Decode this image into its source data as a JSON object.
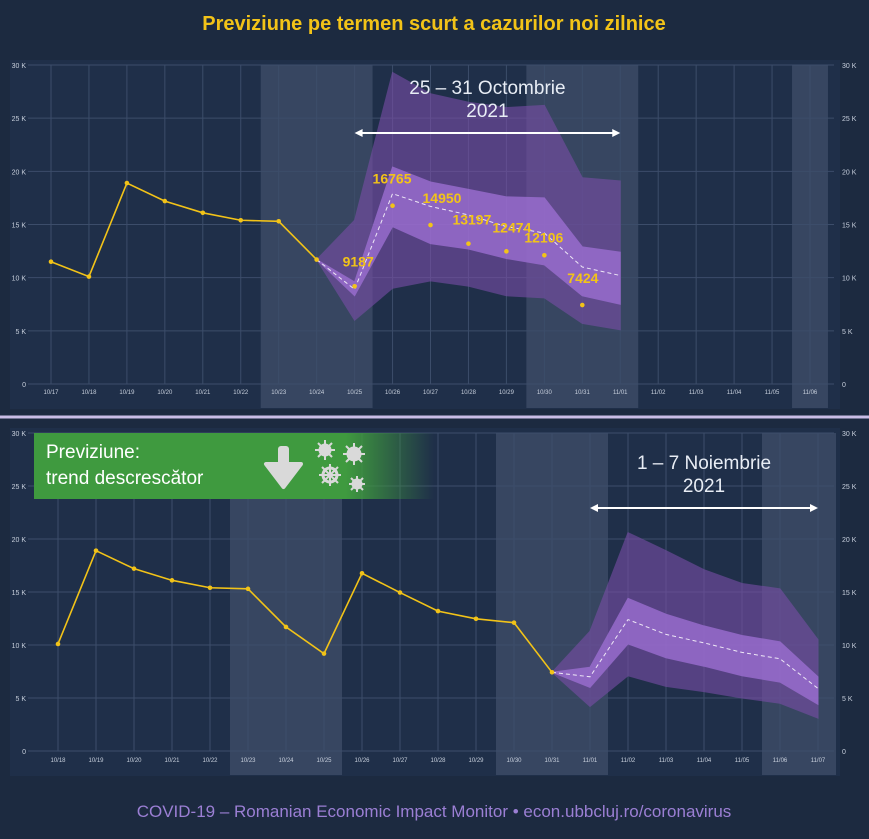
{
  "title": "Previziune pe termen scurt a cazurilor noi zilnice",
  "footer": "COVID-19 – Romanian Economic Impact Monitor • econ.ubbcluj.ro/coronavirus",
  "colors": {
    "background": "#1c2a40",
    "plot": "#223350",
    "observed": "#f2c318",
    "band_outer": "#7a4ea8",
    "band_inner": "#a071d6",
    "title": "#f2c318",
    "footer": "#9b7fd4",
    "badge": "#3f9a3f"
  },
  "badge": {
    "line1": "Previziune:",
    "line2": "trend descrescător",
    "icons": [
      "arrow-down-icon",
      "virus-icon"
    ]
  },
  "chart_data": [
    {
      "type": "line",
      "y_axis": {
        "ylim": [
          0,
          30000
        ],
        "ticks": [
          "0",
          "5 K",
          "10 K",
          "15 K",
          "20 K",
          "25 K",
          "30 K"
        ]
      },
      "categories": [
        "10/17",
        "10/18",
        "10/19",
        "10/20",
        "10/21",
        "10/22",
        "10/23",
        "10/24",
        "10/25",
        "10/26",
        "10/27",
        "10/28",
        "10/29",
        "10/30",
        "10/31",
        "11/01",
        "11/02",
        "11/03",
        "11/04",
        "11/05",
        "11/06"
      ],
      "observed": {
        "x": [
          "10/17",
          "10/18",
          "10/19",
          "10/20",
          "10/21",
          "10/22",
          "10/23",
          "10/24"
        ],
        "values": [
          11500,
          10100,
          18900,
          17200,
          16100,
          15400,
          15300,
          11700
        ]
      },
      "actual_points": {
        "x": [
          "10/25",
          "10/26",
          "10/27",
          "10/28",
          "10/29",
          "10/30",
          "10/31"
        ],
        "values": [
          9187,
          16765,
          14950,
          13197,
          12474,
          12106,
          7424
        ],
        "labels": [
          "9187",
          "16765",
          "14950",
          "13197",
          "12474",
          "12106",
          "7424"
        ]
      },
      "forecast": {
        "x": [
          "10/24",
          "10/25",
          "10/26",
          "10/27",
          "10/28",
          "10/29",
          "10/30",
          "10/31",
          "11/01"
        ],
        "median": [
          11700,
          8900,
          17900,
          16700,
          15900,
          14800,
          14200,
          11000,
          10200
        ],
        "inner_lo": [
          11700,
          8300,
          14800,
          13200,
          12700,
          11800,
          11200,
          8300,
          7500
        ],
        "inner_hi": [
          11700,
          9600,
          20400,
          19000,
          18300,
          17600,
          17500,
          12900,
          12400
        ],
        "outer_lo": [
          11700,
          6000,
          9000,
          9700,
          9200,
          8300,
          8100,
          5700,
          5100
        ],
        "outer_hi": [
          11700,
          15400,
          29300,
          27300,
          26500,
          26000,
          26200,
          19400,
          19100
        ]
      },
      "shaded_ranges": [
        [
          "10/23",
          "10/25"
        ],
        [
          "10/30",
          "11/01"
        ],
        [
          "11/06",
          "11/06"
        ]
      ],
      "period_label": {
        "line1": "25 – 31 Octombrie",
        "line2": "2021",
        "from": "10/25",
        "to": "11/01"
      }
    },
    {
      "type": "line",
      "y_axis": {
        "ylim": [
          0,
          30000
        ],
        "ticks": [
          "0",
          "5 K",
          "10 K",
          "15 K",
          "20 K",
          "25 K",
          "30 K"
        ]
      },
      "categories": [
        "10/18",
        "10/19",
        "10/20",
        "10/21",
        "10/22",
        "10/23",
        "10/24",
        "10/25",
        "10/26",
        "10/27",
        "10/28",
        "10/29",
        "10/30",
        "10/31",
        "11/01",
        "11/02",
        "11/03",
        "11/04",
        "11/05",
        "11/06",
        "11/07"
      ],
      "observed": {
        "x": [
          "10/18",
          "10/19",
          "10/20",
          "10/21",
          "10/22",
          "10/23",
          "10/24",
          "10/25",
          "10/26",
          "10/27",
          "10/28",
          "10/29",
          "10/30",
          "10/31"
        ],
        "values": [
          10100,
          18900,
          17200,
          16100,
          15400,
          15300,
          11700,
          9187,
          16765,
          14950,
          13197,
          12474,
          12106,
          7424
        ]
      },
      "forecast": {
        "x": [
          "10/31",
          "11/01",
          "11/02",
          "11/03",
          "11/04",
          "11/05",
          "11/06",
          "11/07"
        ],
        "median": [
          7424,
          7000,
          12400,
          11000,
          10200,
          9300,
          8700,
          5900
        ],
        "inner_lo": [
          7424,
          6000,
          10100,
          8800,
          8000,
          7100,
          6500,
          4400
        ],
        "inner_hi": [
          7424,
          7900,
          14400,
          12900,
          11800,
          10900,
          10300,
          7000
        ],
        "outer_lo": [
          7424,
          4200,
          7100,
          6100,
          5600,
          5000,
          4500,
          3100
        ],
        "outer_hi": [
          7424,
          11300,
          20600,
          18900,
          17100,
          15800,
          15300,
          10500
        ]
      },
      "shaded_ranges": [
        [
          "10/23",
          "10/25"
        ],
        [
          "10/30",
          "11/01"
        ],
        [
          "11/06",
          "11/07"
        ]
      ],
      "period_label": {
        "line1": "1 – 7 Noiembrie",
        "line2": "2021",
        "from": "11/01",
        "to": "11/07"
      }
    }
  ]
}
